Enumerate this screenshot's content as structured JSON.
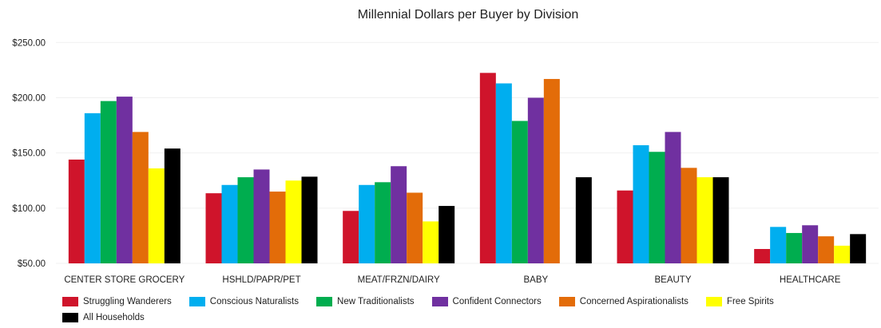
{
  "chart_data": {
    "type": "bar",
    "title": "Millennial Dollars per Buyer by Division",
    "categories": [
      "CENTER STORE GROCERY",
      "HSHLD/PAPR/PET",
      "MEAT/FRZN/DAIRY",
      "BABY",
      "BEAUTY",
      "HEALTHCARE"
    ],
    "ylim": [
      50,
      250
    ],
    "yticks": [
      "$50.00",
      "$100.00",
      "$150.00",
      "$200.00",
      "$250.00"
    ],
    "ytick_values": [
      50,
      100,
      150,
      200,
      250
    ],
    "grid": true,
    "legend_position": "bottom-left",
    "series": [
      {
        "name": "Struggling Wanderers",
        "color": "#cf142b",
        "values": [
          144,
          113.5,
          97.5,
          222.5,
          116,
          63
        ]
      },
      {
        "name": "Conscious Naturalists",
        "color": "#00aeef",
        "values": [
          186,
          121,
          121,
          213,
          157,
          83
        ]
      },
      {
        "name": "New Traditionalists",
        "color": "#00ad4f",
        "values": [
          197,
          128,
          123.5,
          179,
          151,
          77.5
        ]
      },
      {
        "name": "Confident Connectors",
        "color": "#7030a0",
        "values": [
          201,
          135,
          138,
          200,
          169,
          84.5
        ]
      },
      {
        "name": "Concerned Aspirationalists",
        "color": "#e36c09",
        "values": [
          169,
          115,
          114,
          217,
          136.5,
          74.5
        ]
      },
      {
        "name": "Free Spirits",
        "color": "#ffff00",
        "values": [
          136,
          125,
          88,
          null,
          128,
          66
        ]
      },
      {
        "name": "All Households",
        "color": "#000000",
        "values": [
          154,
          128.5,
          102,
          128,
          128,
          76.5
        ]
      }
    ]
  }
}
